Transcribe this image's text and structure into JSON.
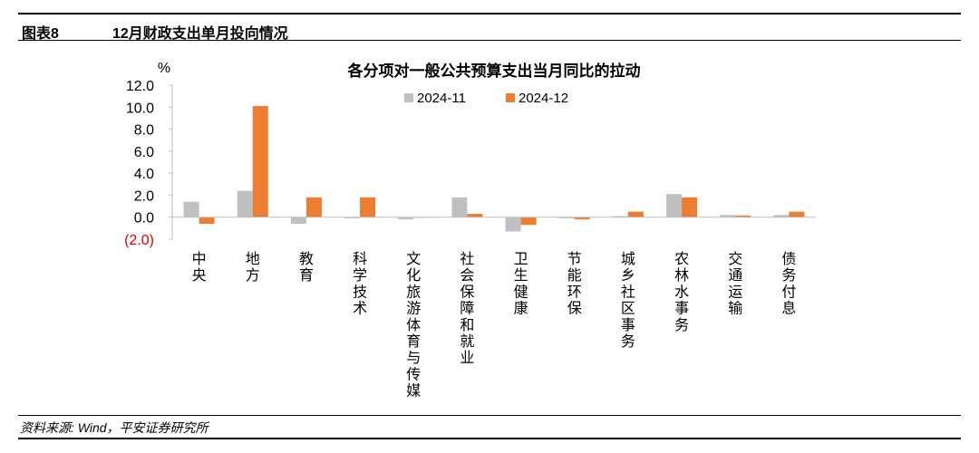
{
  "figure": {
    "number": "图表8",
    "title": "12月财政支出单月投向情况",
    "source": "资料来源: Wind，平安证券研究所"
  },
  "colors": {
    "series_2024_11": "#c0c0c0",
    "series_2024_12": "#ed7d31",
    "negative_label": "#e00000",
    "axis": "#bfbfbf"
  },
  "chart_data": {
    "type": "bar",
    "title": "各分项对一般公共预算支出当月同比的拉动",
    "unit": "%",
    "ylim": [
      -2.0,
      12.0
    ],
    "yticks": [
      "12.0",
      "10.0",
      "8.0",
      "6.0",
      "4.0",
      "2.0",
      "0.0",
      "(2.0)"
    ],
    "ytick_values": [
      12,
      10,
      8,
      6,
      4,
      2,
      0,
      -2
    ],
    "legend_position": "top-center",
    "grid": false,
    "categories": [
      "中央",
      "地方",
      "教育",
      "科学技术",
      "文化旅游体育与传媒",
      "社会保障和就业",
      "卫生健康",
      "节能环保",
      "城乡社区事务",
      "农林水事务",
      "交通运输",
      "债务付息"
    ],
    "series": [
      {
        "name": "2024-11",
        "values": [
          1.4,
          2.4,
          -0.6,
          -0.1,
          -0.2,
          1.8,
          -1.3,
          -0.1,
          0.1,
          2.1,
          0.2,
          0.2
        ]
      },
      {
        "name": "2024-12",
        "values": [
          -0.6,
          10.1,
          1.8,
          1.8,
          -0.05,
          0.3,
          -0.7,
          -0.2,
          0.5,
          1.8,
          0.15,
          0.5
        ]
      }
    ]
  }
}
